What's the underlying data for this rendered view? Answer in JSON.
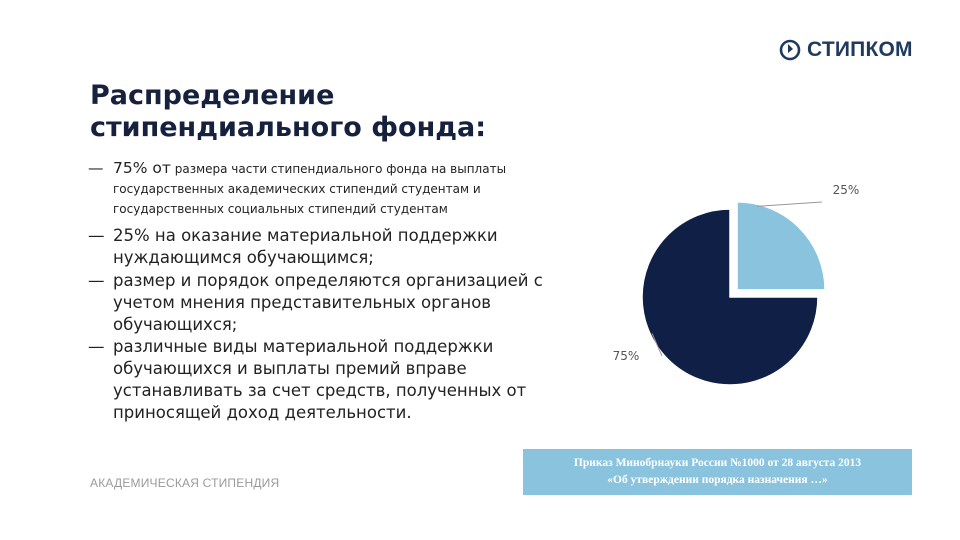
{
  "logo": {
    "text": "СТИПКОМ",
    "icon": "stipkom-logo-icon",
    "color": "#1f3a5f"
  },
  "slide": {
    "title": "Распределение стипендиального фонда:",
    "bullets": [
      {
        "dash": "—",
        "lead": "75% от",
        "text": "размера части стипендиального фонда на выплаты государственных академических стипендий студентам и государственных социальных стипендий студентам"
      },
      {
        "dash": "—",
        "text": "25% на оказание материальной поддержки нуждающимся обучающимся;"
      },
      {
        "dash": "—",
        "text": "размер и порядок определяются организацией с учетом мнения представительных органов обучающихся;"
      },
      {
        "dash": "—",
        "text": "различные виды материальной поддержки обучающихся и выплаты премий вправе устанавливать за счет средств, полученных от приносящей доход деятельности."
      }
    ],
    "footer_label": "АКАДЕМИЧЕСКАЯ СТИПЕНДИЯ",
    "order_note": {
      "line1": "Приказ Минобрнауки России №1000 от 28 августа 2013",
      "line2": "«Об утверждении порядка назначения …»"
    }
  },
  "chart_data": {
    "type": "pie",
    "categories": [
      "",
      ""
    ],
    "values": [
      25,
      75
    ],
    "labels": [
      "25%",
      "75%"
    ],
    "colors": [
      "#89c3de",
      "#0f1f45"
    ],
    "exploded": [
      true,
      false
    ]
  }
}
